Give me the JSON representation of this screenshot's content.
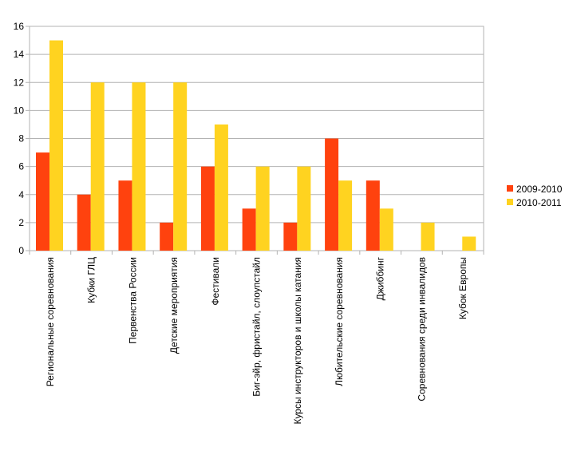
{
  "chart_data": {
    "type": "bar",
    "title": "",
    "xlabel": "",
    "ylabel": "",
    "ylim": [
      0,
      16
    ],
    "yticks": [
      0,
      2,
      4,
      6,
      8,
      10,
      12,
      14,
      16
    ],
    "grid": true,
    "legend_position": "right",
    "categories": [
      "Региональные соревнования",
      "Кубки ГЛЦ",
      "Первенства России",
      "Детские мероприятия",
      "Фестивали",
      "Биг-эйр, фристайл, слоупстайл",
      "Курсы инструкторов и школы катания",
      "Любительские соревнования",
      "Джиббинг",
      "Соревнования среди инвалидов",
      "Кубок Европы"
    ],
    "series": [
      {
        "name": "2009-2010",
        "color": "#ff420e",
        "values": [
          7,
          4,
          5,
          2,
          6,
          3,
          2,
          8,
          5,
          0,
          0
        ]
      },
      {
        "name": "2010-2011",
        "color": "#ffd320",
        "values": [
          15,
          12,
          12,
          12,
          9,
          6,
          6,
          5,
          3,
          2,
          1
        ]
      }
    ]
  }
}
